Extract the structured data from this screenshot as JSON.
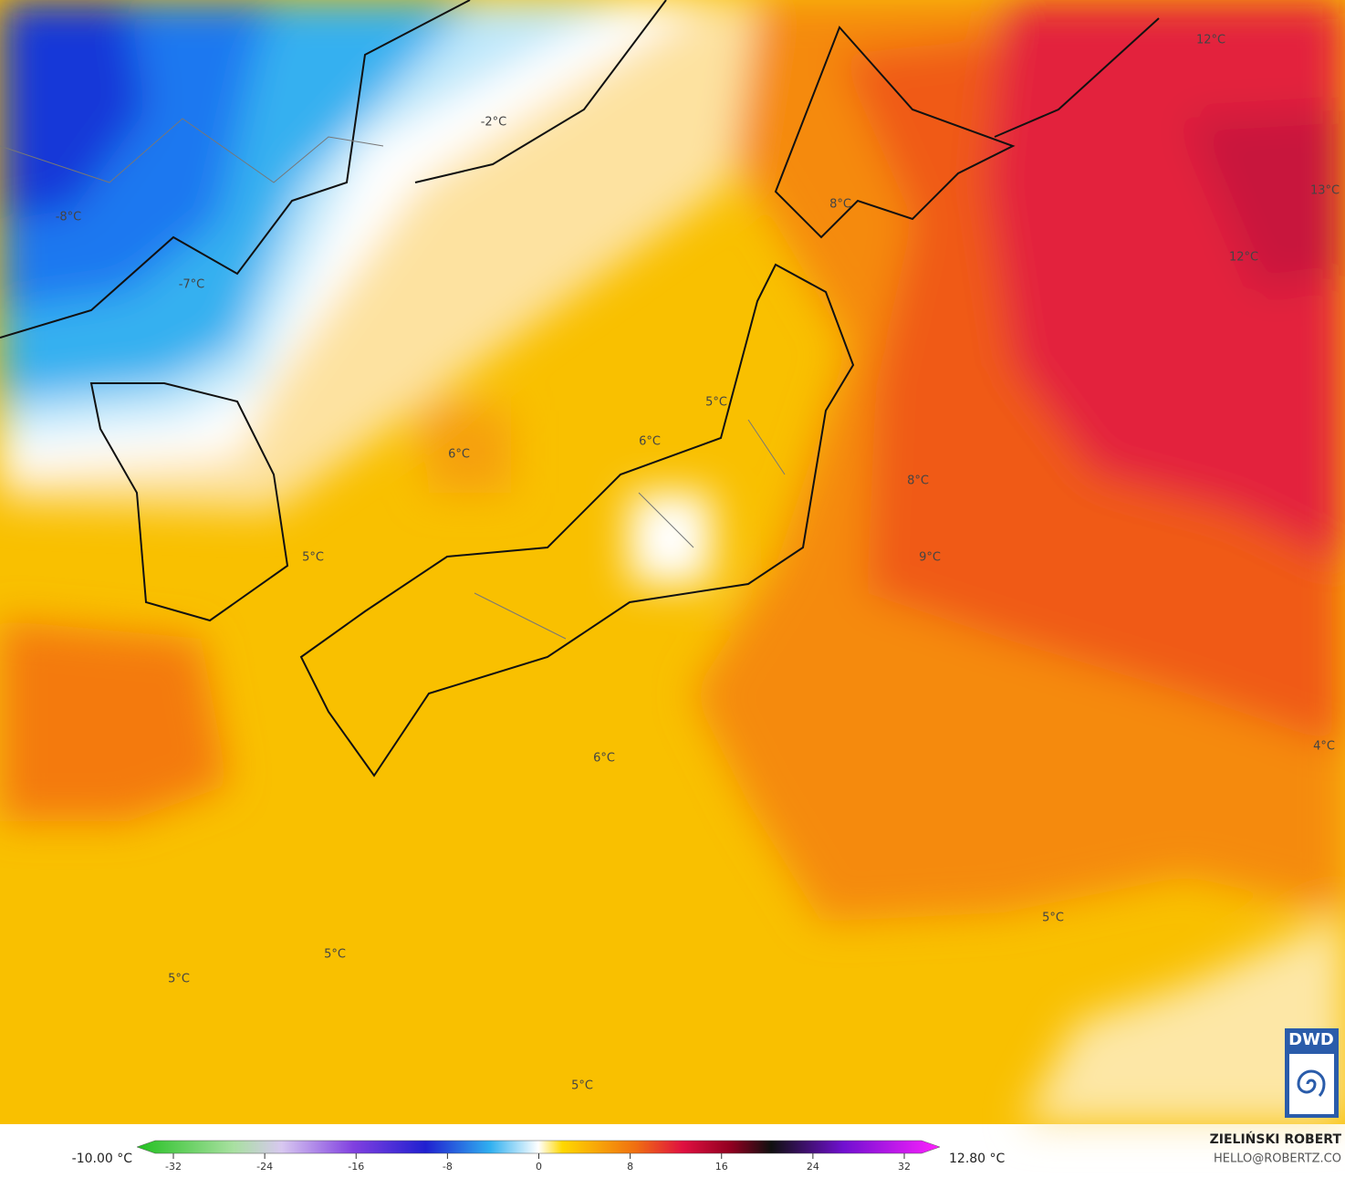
{
  "map": {
    "temperature_labels": [
      "-2°C",
      "-8°C",
      "-7°C",
      "8°C",
      "12°C",
      "13°C",
      "12°C",
      "5°C",
      "6°C",
      "6°C",
      "8°C",
      "9°C",
      "5°C",
      "6°C",
      "4°C",
      "5°C",
      "5°C",
      "5°C",
      "5°C"
    ],
    "logo": "DWD"
  },
  "colorbar": {
    "min_label": "-10.00 °C",
    "max_label": "12.80 °C",
    "ticks": [
      -32,
      -24,
      -16,
      -8,
      0,
      8,
      16,
      24,
      32
    ]
  },
  "credit": {
    "author": "ZIELIŃSKI ROBERT",
    "email": "HELLO@ROBERTZ.CO"
  }
}
